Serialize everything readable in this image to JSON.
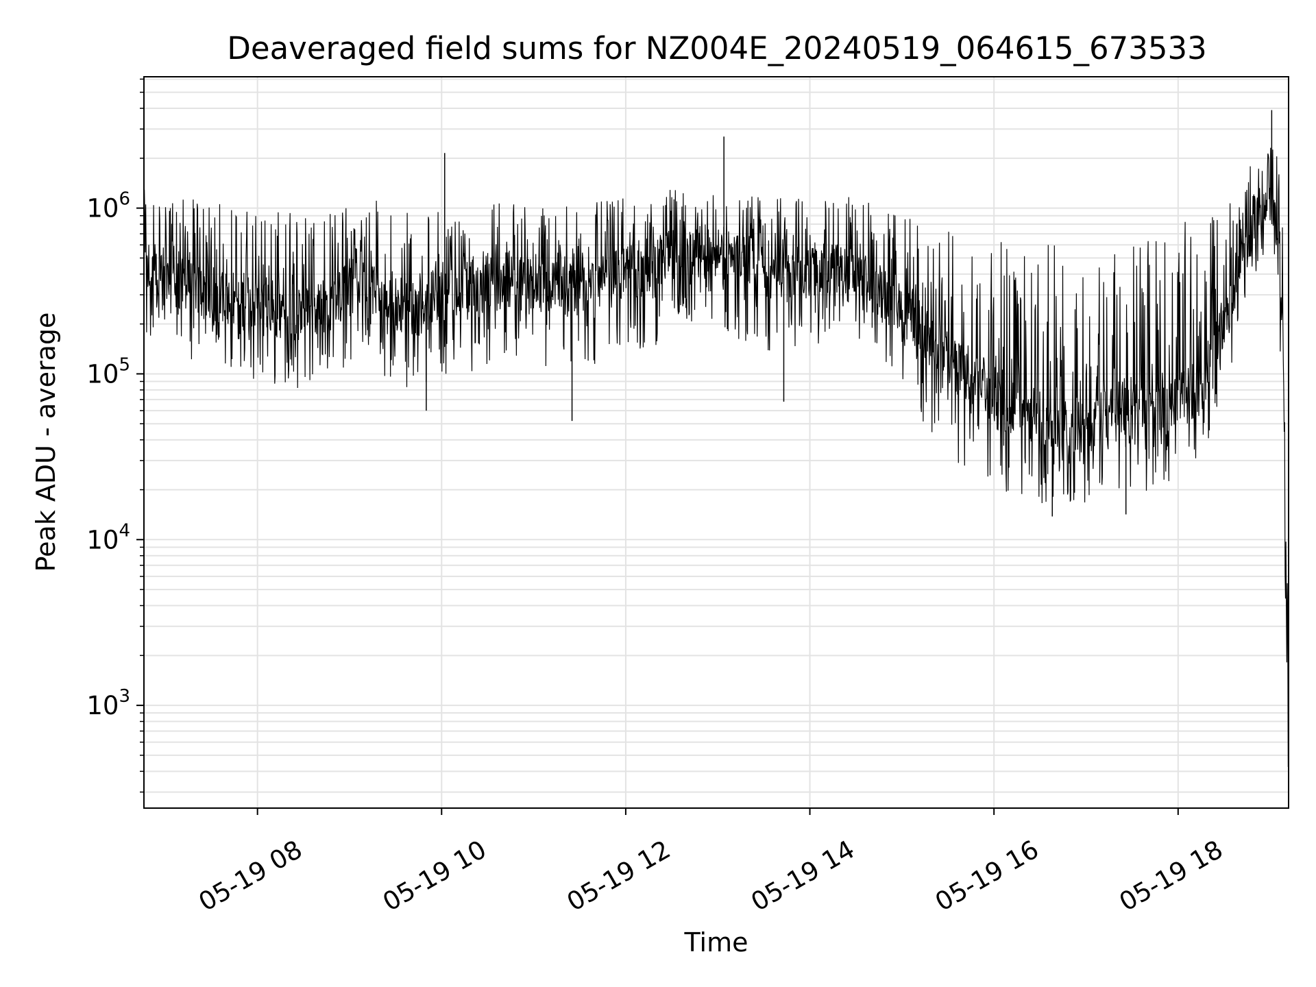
{
  "chart_data": {
    "type": "line",
    "title": "Deaveraged field sums for NZ004E_20240519_064615_673533",
    "xlabel": "Time",
    "ylabel": "Peak ADU - average",
    "y_scale": "log",
    "ylim": [
      240,
      6200000
    ],
    "xlim": [
      "2024-05-19 06:46",
      "2024-05-19 19:12"
    ],
    "grid": true,
    "grid_color": "#e3e3e3",
    "line_color": "#000000",
    "x_ticks": [
      {
        "label": "05-19 08",
        "value": "2024-05-19 08:00"
      },
      {
        "label": "05-19 10",
        "value": "2024-05-19 10:00"
      },
      {
        "label": "05-19 12",
        "value": "2024-05-19 12:00"
      },
      {
        "label": "05-19 14",
        "value": "2024-05-19 14:00"
      },
      {
        "label": "05-19 16",
        "value": "2024-05-19 16:00"
      },
      {
        "label": "05-19 18",
        "value": "2024-05-19 18:00"
      }
    ],
    "y_ticks": [
      {
        "base": "10",
        "exp": "3",
        "value": 1000
      },
      {
        "base": "10",
        "exp": "4",
        "value": 10000
      },
      {
        "base": "10",
        "exp": "5",
        "value": 100000
      },
      {
        "base": "10",
        "exp": "6",
        "value": 1000000
      }
    ],
    "series": [
      {
        "x": [
          "2024-05-19 06:46",
          "2024-05-19 07:00",
          "2024-05-19 07:15",
          "2024-05-19 07:30",
          "2024-05-19 07:45",
          "2024-05-19 08:00",
          "2024-05-19 08:15",
          "2024-05-19 08:30",
          "2024-05-19 08:45",
          "2024-05-19 09:00",
          "2024-05-19 09:15",
          "2024-05-19 09:30",
          "2024-05-19 09:45",
          "2024-05-19 10:00",
          "2024-05-19 10:15",
          "2024-05-19 10:30",
          "2024-05-19 10:45",
          "2024-05-19 11:00",
          "2024-05-19 11:15",
          "2024-05-19 11:30",
          "2024-05-19 11:45",
          "2024-05-19 12:00",
          "2024-05-19 12:15",
          "2024-05-19 12:30",
          "2024-05-19 12:45",
          "2024-05-19 13:00",
          "2024-05-19 13:15",
          "2024-05-19 13:30",
          "2024-05-19 13:45",
          "2024-05-19 14:00",
          "2024-05-19 14:15",
          "2024-05-19 14:30",
          "2024-05-19 14:45",
          "2024-05-19 15:00",
          "2024-05-19 15:15",
          "2024-05-19 15:30",
          "2024-05-19 15:45",
          "2024-05-19 16:00",
          "2024-05-19 16:15",
          "2024-05-19 16:30",
          "2024-05-19 16:45",
          "2024-05-19 17:00",
          "2024-05-19 17:15",
          "2024-05-19 17:30",
          "2024-05-19 17:45",
          "2024-05-19 18:00",
          "2024-05-19 18:15",
          "2024-05-19 18:30",
          "2024-05-19 18:45",
          "2024-05-19 19:00",
          "2024-05-19 19:05",
          "2024-05-19 19:08",
          "2024-05-19 19:10",
          "2024-05-19 19:11",
          "2024-05-19 19:12"
        ],
        "values": [
          400000,
          350000,
          330000,
          300000,
          280000,
          260000,
          240000,
          230000,
          260000,
          340000,
          320000,
          260000,
          250000,
          300000,
          310000,
          340000,
          380000,
          320000,
          350000,
          330000,
          360000,
          400000,
          450000,
          500000,
          560000,
          520000,
          480000,
          420000,
          380000,
          400000,
          420000,
          380000,
          300000,
          260000,
          180000,
          120000,
          90000,
          70000,
          60000,
          55000,
          50000,
          48000,
          60000,
          62000,
          65000,
          70000,
          85000,
          200000,
          700000,
          1200000,
          700000,
          200000,
          20000,
          1000,
          400
        ],
        "upper": [
          1300000,
          1200000,
          1150000,
          1100000,
          1050000,
          1050000,
          1000000,
          950000,
          950000,
          1100000,
          1200000,
          1000000,
          950000,
          1000000,
          1050000,
          1100000,
          1150000,
          1050000,
          1100000,
          1080000,
          1100000,
          1150000,
          1200000,
          1300000,
          1450000,
          1300000,
          1250000,
          1180000,
          1150000,
          1200000,
          1250000,
          1200000,
          1000000,
          900000,
          800000,
          760000,
          700000,
          650000,
          620000,
          600000,
          600000,
          600000,
          620000,
          650000,
          750000,
          800000,
          900000,
          1000000,
          1700000,
          2500000,
          2000000,
          900000,
          200000,
          8000,
          1500
        ],
        "lower": [
          150000,
          130000,
          120000,
          110000,
          100000,
          90000,
          85000,
          80000,
          85000,
          110000,
          100000,
          85000,
          80000,
          95000,
          100000,
          110000,
          120000,
          100000,
          110000,
          105000,
          115000,
          130000,
          140000,
          170000,
          200000,
          180000,
          160000,
          140000,
          130000,
          140000,
          150000,
          140000,
          110000,
          90000,
          45000,
          30000,
          25000,
          20000,
          18000,
          16000,
          16000,
          16000,
          18000,
          19000,
          20000,
          22000,
          26000,
          70000,
          300000,
          600000,
          300000,
          60000,
          4000,
          500,
          300
        ],
        "spikes": [
          {
            "x": "2024-05-19 10:02",
            "value": 2150000
          },
          {
            "x": "2024-05-19 13:04",
            "value": 2700000
          },
          {
            "x": "2024-05-19 19:01",
            "value": 3900000
          },
          {
            "x": "2024-05-19 11:25",
            "value": 52000
          },
          {
            "x": "2024-05-19 09:50",
            "value": 60000
          },
          {
            "x": "2024-05-19 13:43",
            "value": 68000
          },
          {
            "x": "2024-05-19 16:38",
            "value": 13800
          },
          {
            "x": "2024-05-19 17:26",
            "value": 14200
          }
        ]
      }
    ]
  }
}
